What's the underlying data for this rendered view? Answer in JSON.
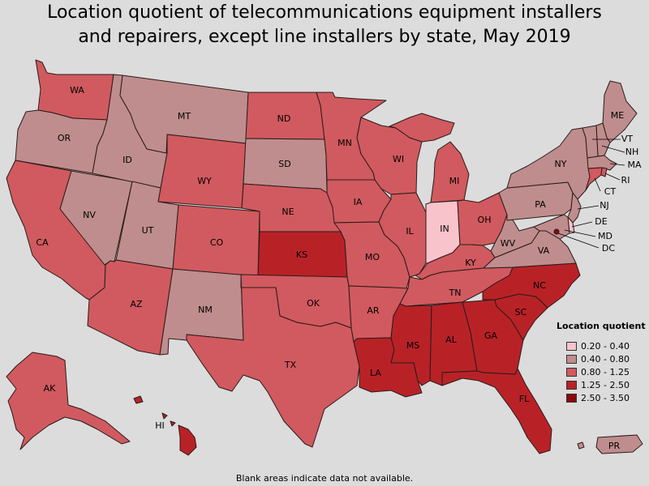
{
  "title": {
    "line1": "Location quotient of telecommunications equipment installers",
    "line2": "and repairers, except line installers by state, May 2019"
  },
  "legend": {
    "title": "Location quotient",
    "bins": [
      {
        "label": "0.20 - 0.40",
        "color": "#f9c3cb"
      },
      {
        "label": "0.40 - 0.80",
        "color": "#bf8d8d"
      },
      {
        "label": "0.80 - 1.25",
        "color": "#d05a5f"
      },
      {
        "label": "1.25 - 2.50",
        "color": "#b82227"
      },
      {
        "label": "2.50 - 3.50",
        "color": "#8a0a0c"
      }
    ]
  },
  "footnote": "Blank areas indicate data not available.",
  "states": {
    "WA": 2,
    "OR": 1,
    "CA": 2,
    "NV": 1,
    "ID": 1,
    "MT": 1,
    "WY": 2,
    "UT": 1,
    "AZ": 2,
    "NM": 1,
    "CO": 2,
    "ND": 2,
    "SD": 1,
    "NE": 2,
    "KS": 3,
    "OK": 2,
    "TX": 2,
    "MN": 2,
    "IA": 2,
    "MO": 2,
    "AR": 2,
    "LA": 3,
    "WI": 2,
    "IL": 2,
    "MI": 2,
    "IN": 0,
    "OH": 2,
    "KY": 2,
    "TN": 2,
    "MS": 3,
    "AL": 3,
    "GA": 3,
    "FL": 3,
    "SC": 3,
    "NC": 3,
    "VA": 1,
    "WV": 1,
    "PA": 1,
    "NY": 1,
    "ME": 1,
    "NH": 1,
    "VT": 1,
    "MA": 1,
    "RI": 2,
    "CT": 2,
    "NJ": 1,
    "DE": 0,
    "MD": 1,
    "DC": 4,
    "AK": 2,
    "HI": 3,
    "PR": 1
  },
  "labels": {
    "WA": "WA",
    "OR": "OR",
    "CA": "CA",
    "NV": "NV",
    "ID": "ID",
    "MT": "MT",
    "WY": "WY",
    "UT": "UT",
    "AZ": "AZ",
    "NM": "NM",
    "CO": "CO",
    "ND": "ND",
    "SD": "SD",
    "NE": "NE",
    "KS": "KS",
    "OK": "OK",
    "TX": "TX",
    "MN": "MN",
    "IA": "IA",
    "MO": "MO",
    "AR": "AR",
    "LA": "LA",
    "WI": "WI",
    "IL": "IL",
    "MI": "MI",
    "IN": "IN",
    "OH": "OH",
    "KY": "KY",
    "TN": "TN",
    "MS": "MS",
    "AL": "AL",
    "GA": "GA",
    "FL": "FL",
    "SC": "SC",
    "NC": "NC",
    "VA": "VA",
    "WV": "WV",
    "PA": "PA",
    "NY": "NY",
    "ME": "ME",
    "NH": "NH",
    "VT": "VT",
    "MA": "MA",
    "RI": "RI",
    "CT": "CT",
    "NJ": "NJ",
    "DE": "DE",
    "MD": "MD",
    "DC": "DC",
    "AK": "AK",
    "HI": "HI",
    "PR": "PR"
  }
}
